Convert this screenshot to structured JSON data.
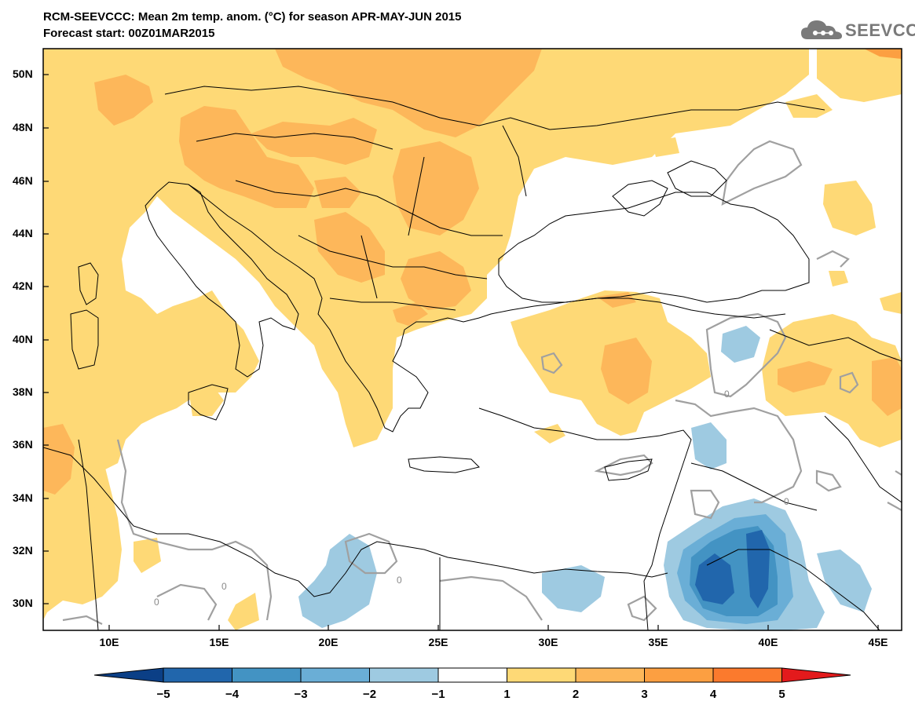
{
  "title_line1": "RCM-SEEVCCC: Mean 2m temp. anom. (°C) for season APR-MAY-JUN 2015",
  "title_line2": "Forecast start: 00Z01MAR2015",
  "logo_text": "SEEVCCC",
  "logo_icon": "cloud-logo-icon",
  "lat_ticks": [
    "50N",
    "48N",
    "46N",
    "44N",
    "42N",
    "40N",
    "38N",
    "36N",
    "34N",
    "32N",
    "30N"
  ],
  "lon_ticks": [
    "10E",
    "15E",
    "20E",
    "25E",
    "30E",
    "35E",
    "40E",
    "45E"
  ],
  "contour_labels": [
    "0",
    "0",
    "0",
    "0",
    "0"
  ],
  "colorbar": {
    "labels": [
      "−5",
      "−4",
      "−3",
      "−2",
      "−1",
      "1",
      "2",
      "3",
      "4",
      "5"
    ],
    "colors": [
      "#0b3f86",
      "#2166ac",
      "#4393c3",
      "#6aaed6",
      "#9ecae1",
      "#ffffff",
      "#fed976",
      "#fdb75a",
      "#fc9f41",
      "#fb7a2d",
      "#e31a1c"
    ]
  },
  "palette": {
    "warm_1_2": "#fed976",
    "warm_2_3": "#fdb75a",
    "warm_3_4": "#fc9f41",
    "cool_1_2": "#9ecae1",
    "cool_2_3": "#6aaed6",
    "cool_3_4": "#4393c3",
    "cool_4_5": "#2166ac",
    "zero_contour": "#a0a0a0"
  }
}
